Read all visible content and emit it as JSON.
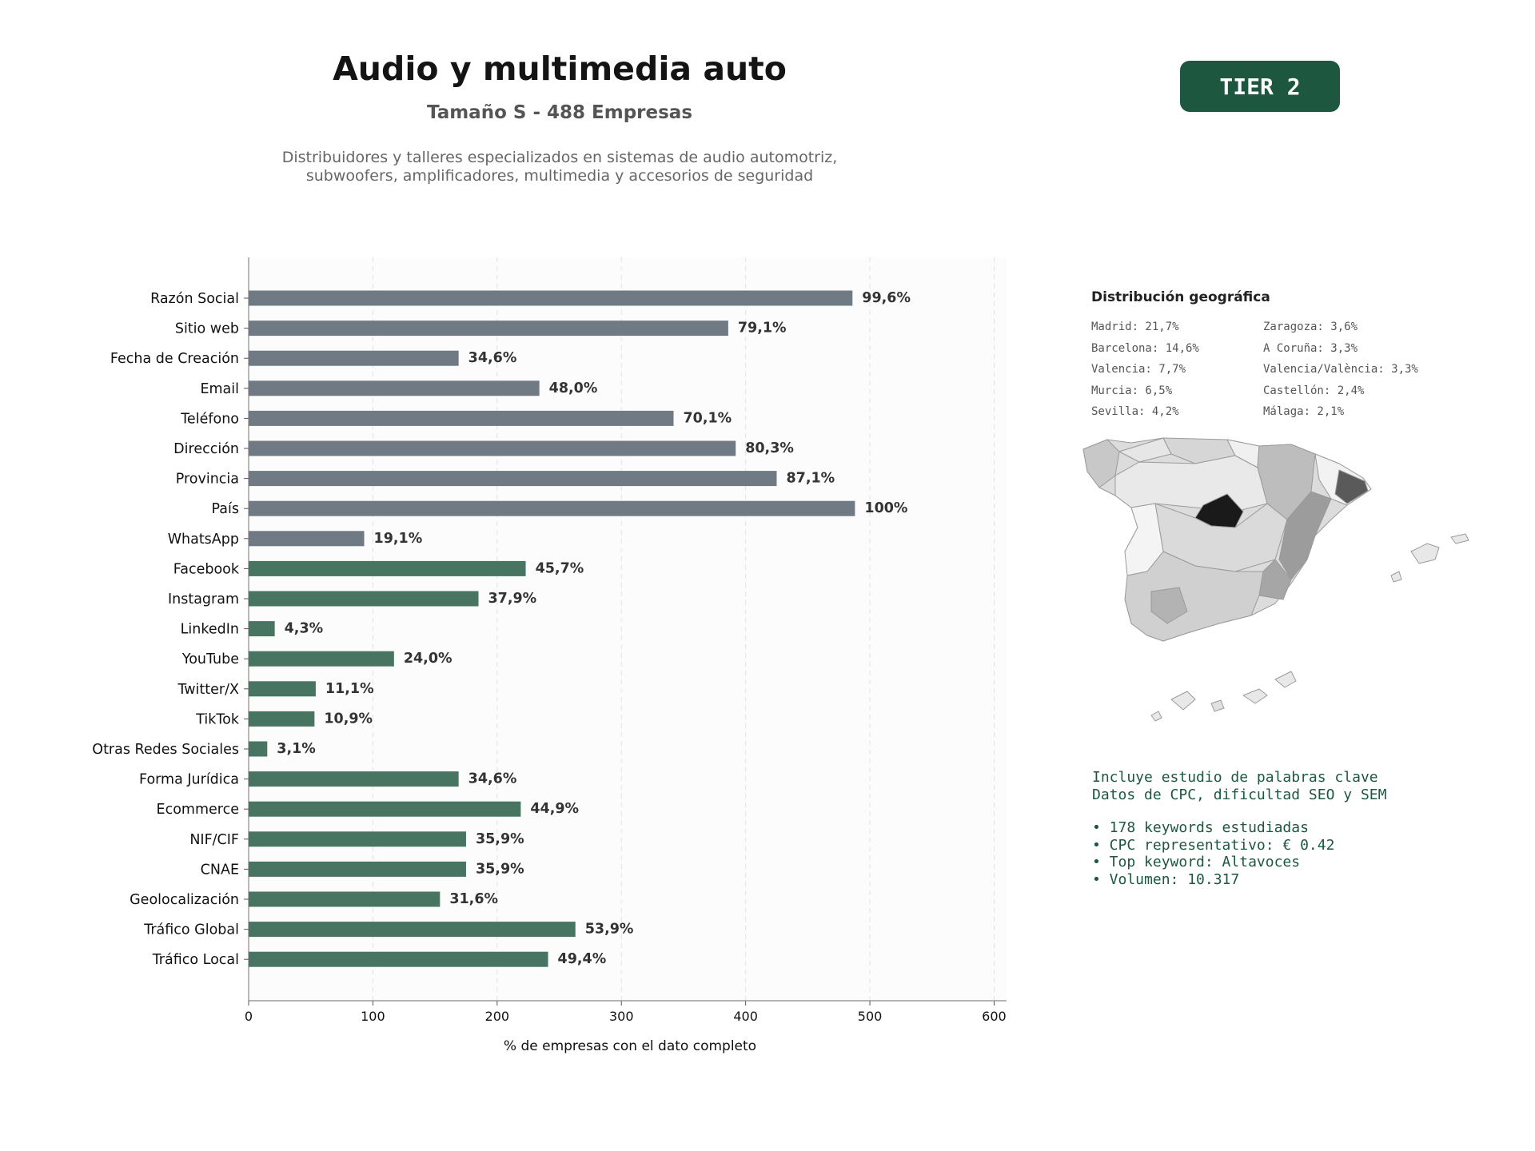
{
  "header": {
    "title": "Audio y multimedia auto",
    "subtitle": "Tamaño S - 488 Empresas",
    "description": "Distribuidores y talleres especializados en sistemas de audio automotriz, subwoofers, amplificadores, multimedia y accesorios de seguridad",
    "tier_label": "TIER 2"
  },
  "colors": {
    "gray_bar": "#6f7a84",
    "green_bar": "#477562",
    "accent": "#1e5740"
  },
  "chart_data": {
    "type": "bar",
    "orientation": "horizontal",
    "xlabel": "% de empresas con el dato completo",
    "xlim": [
      0,
      610
    ],
    "xticks": [
      0,
      100,
      200,
      300,
      400,
      500,
      600
    ],
    "grid": true,
    "categories": [
      "Razón Social",
      "Sitio web",
      "Fecha de Creación",
      "Email",
      "Teléfono",
      "Dirección",
      "Provincia",
      "País",
      "WhatsApp",
      "Facebook",
      "Instagram",
      "LinkedIn",
      "YouTube",
      "Twitter/X",
      "TikTok",
      "Otras Redes Sociales",
      "Forma Jurídica",
      "Ecommerce",
      "NIF/CIF",
      "CNAE",
      "Geolocalización",
      "Tráfico Global",
      "Tráfico Local"
    ],
    "values": [
      486,
      386,
      169,
      234,
      342,
      392,
      425,
      488,
      93,
      223,
      185,
      21,
      117,
      54,
      53,
      15,
      169,
      219,
      175,
      175,
      154,
      263,
      241
    ],
    "labels": [
      "99,6%",
      "79,1%",
      "34,6%",
      "48,0%",
      "70,1%",
      "80,3%",
      "87,1%",
      "100%",
      "19,1%",
      "45,7%",
      "37,9%",
      "4,3%",
      "24,0%",
      "11,1%",
      "10,9%",
      "3,1%",
      "34,6%",
      "44,9%",
      "35,9%",
      "35,9%",
      "31,6%",
      "53,9%",
      "49,4%"
    ],
    "colors": [
      "gray",
      "gray",
      "gray",
      "gray",
      "gray",
      "gray",
      "gray",
      "gray",
      "gray",
      "green",
      "green",
      "green",
      "green",
      "green",
      "green",
      "green",
      "green",
      "green",
      "green",
      "green",
      "green",
      "green",
      "green"
    ]
  },
  "geo": {
    "title": "Distribución geográfica",
    "items": [
      "Madrid: 21,7%",
      "Zaragoza: 3,6%",
      "Barcelona: 14,6%",
      "A Coruña: 3,3%",
      "Valencia: 7,7%",
      "Valencia/València: 3,3%",
      "Murcia: 6,5%",
      "Castellón: 2,4%",
      "Sevilla: 4,2%",
      "Málaga: 2,1%"
    ]
  },
  "keywords": {
    "line1": "Incluye estudio de palabras clave",
    "line2": "Datos de CPC, dificultad SEO y SEM",
    "bullets": [
      "• 178 keywords estudiadas",
      "• CPC representativo: € 0.42",
      "• Top keyword: Altavoces",
      "• Volumen: 10.317"
    ]
  }
}
